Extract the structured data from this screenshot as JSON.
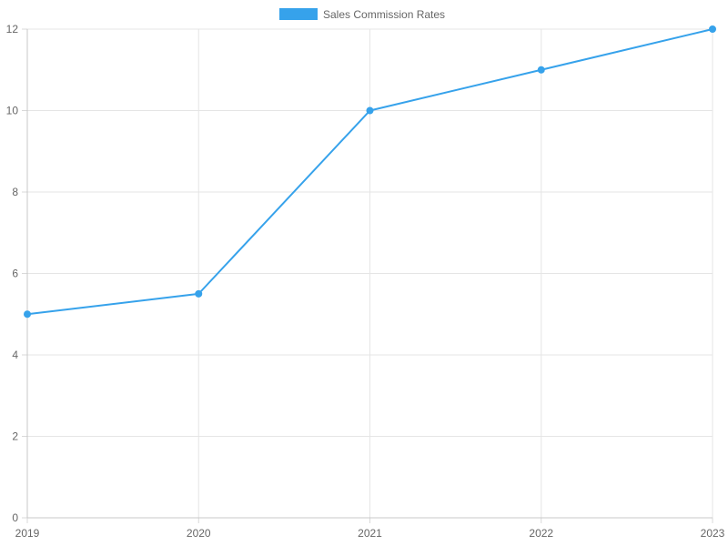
{
  "chart_data": {
    "type": "line",
    "categories": [
      "2019",
      "2020",
      "2021",
      "2022",
      "2023"
    ],
    "series": [
      {
        "name": "Sales Commission Rates",
        "values": [
          5,
          5.5,
          10,
          11,
          12
        ],
        "color": "#36a2eb"
      }
    ],
    "y_ticks": [
      "0",
      "2",
      "4",
      "6",
      "8",
      "10",
      "12"
    ],
    "ylim": [
      0,
      12
    ],
    "grid": true,
    "legend": "top-center",
    "title": "",
    "xlabel": "",
    "ylabel": ""
  }
}
